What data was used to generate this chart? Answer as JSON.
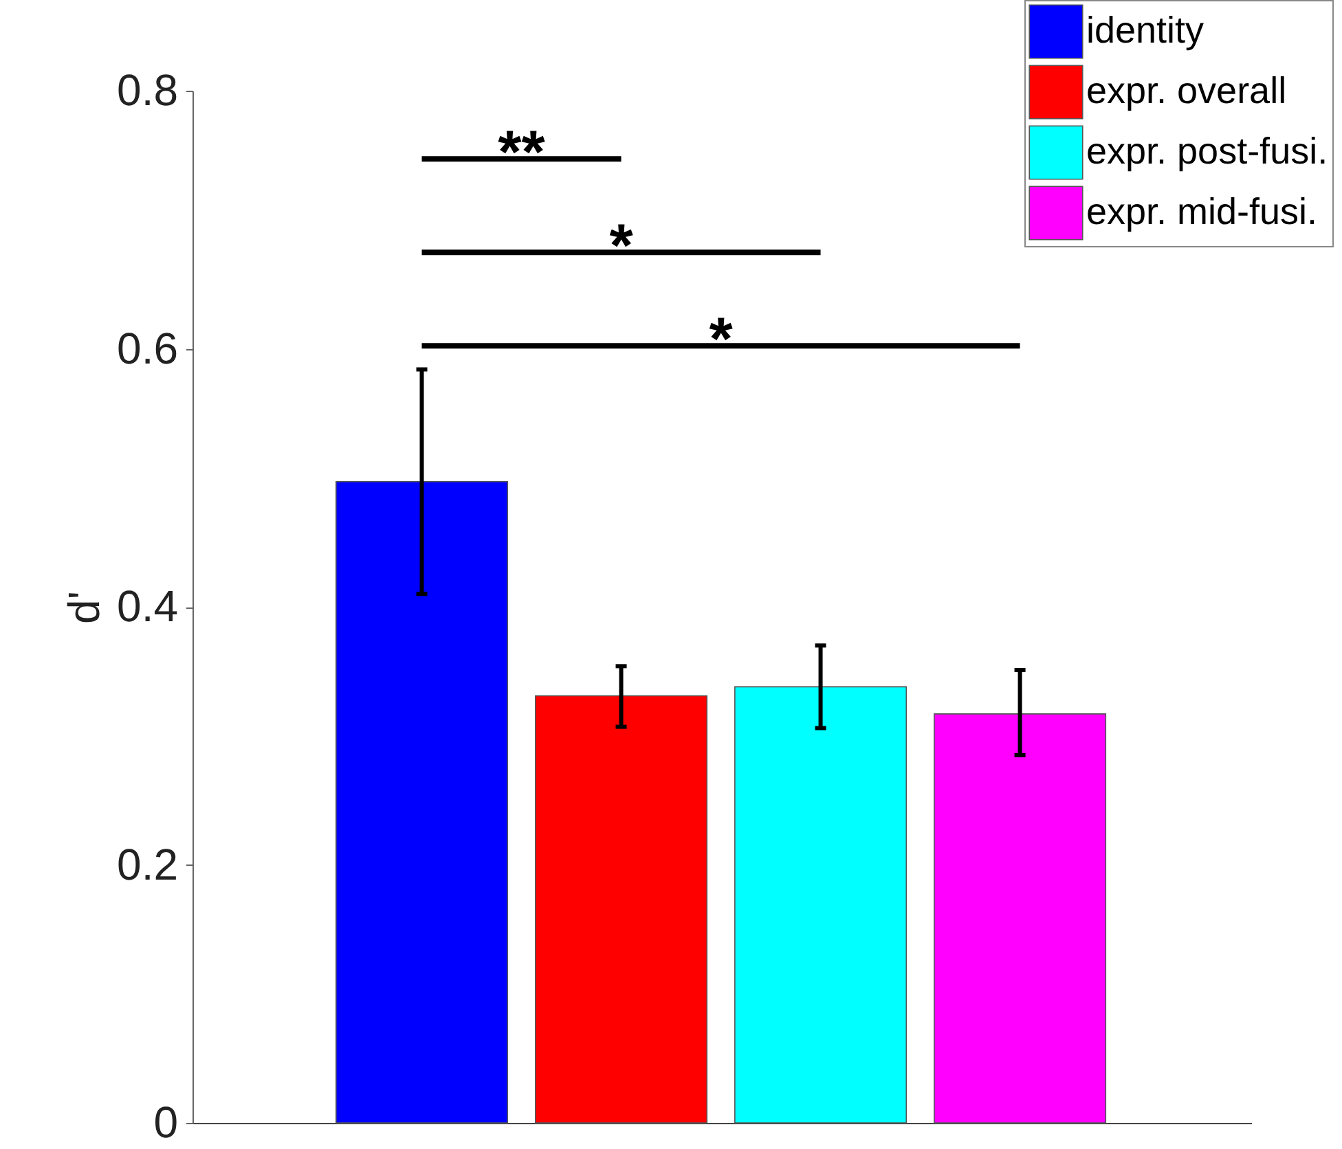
{
  "chart_data": {
    "type": "bar",
    "ylabel": "d'",
    "categories": [
      null
    ],
    "series": [
      {
        "name": "identity",
        "color": "#0000ff",
        "values": [
          0.497
        ],
        "errors": [
          [
            0.41,
            0.584
          ]
        ]
      },
      {
        "name": "expr. overall",
        "color": "#ff0000",
        "values": [
          0.331
        ],
        "errors": [
          [
            0.307,
            0.354
          ]
        ]
      },
      {
        "name": "expr. post-fusi.",
        "color": "#00ffff",
        "values": [
          0.338
        ],
        "errors": [
          [
            0.306,
            0.37
          ]
        ]
      },
      {
        "name": "expr. mid-fusi.",
        "color": "#ff00ff",
        "values": [
          0.317
        ],
        "errors": [
          [
            0.285,
            0.351
          ]
        ]
      }
    ],
    "ylim": [
      0,
      0.8
    ],
    "yticks": [
      0,
      0.2,
      0.4,
      0.6,
      0.8
    ],
    "grid": false,
    "legend": "top right",
    "annotations": [
      "**",
      "*",
      "*"
    ]
  }
}
